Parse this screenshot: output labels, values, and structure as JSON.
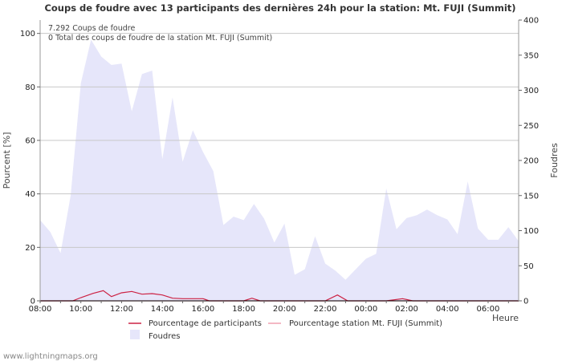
{
  "chart_data": {
    "type": "area",
    "title": "Coups de foudre avec 13 participants des dernières 24h pour la station: Mt. FUJI (Summit)",
    "xlabel": "Heure",
    "ylabel_left": "Pourcent   [%]",
    "ylabel_right": "Foudres",
    "ylim_left": [
      0,
      105
    ],
    "ylim_right": [
      0,
      400
    ],
    "yticks_left": [
      "0",
      "20",
      "40",
      "60",
      "80",
      "100"
    ],
    "yticks_left_values": [
      0,
      20,
      40,
      60,
      80,
      100
    ],
    "yticks_right": [
      "0",
      "50",
      "100",
      "150",
      "200",
      "250",
      "300",
      "350",
      "400"
    ],
    "yticks_right_values": [
      0,
      50,
      100,
      150,
      200,
      250,
      300,
      350,
      400
    ],
    "xticks": [
      "08:00",
      "10:00",
      "12:00",
      "14:00",
      "16:00",
      "18:00",
      "20:00",
      "22:00",
      "00:00",
      "02:00",
      "04:00",
      "06:00"
    ],
    "xticks_hours": [
      0,
      2,
      4,
      6,
      8,
      10,
      12,
      14,
      16,
      18,
      20,
      22
    ],
    "x_range_hours": [
      0,
      23.5
    ],
    "info_lines": [
      "7.292  Coups de foudre",
      "0 Total des coups de foudre de la station Mt. FUJI (Summit)"
    ],
    "series": [
      {
        "name": "Foudres",
        "axis": "right",
        "color": "#e6e6fa",
        "x_hours": [
          0,
          0.5,
          1,
          1.5,
          2,
          2.5,
          3,
          3.5,
          4,
          4.5,
          5,
          5.5,
          6,
          6.5,
          7,
          7.5,
          8,
          8.5,
          9,
          9.5,
          10,
          10.5,
          11,
          11.5,
          12,
          12.5,
          13,
          13.5,
          14,
          14.5,
          15,
          15.5,
          16,
          16.5,
          17,
          17.5,
          18,
          18.5,
          19,
          19.5,
          20,
          20.5,
          21,
          21.5,
          22,
          22.5,
          23,
          23.5
        ],
        "values": [
          115,
          98,
          68,
          150,
          310,
          372,
          348,
          336,
          338,
          270,
          323,
          328,
          202,
          290,
          198,
          243,
          212,
          185,
          108,
          120,
          115,
          138,
          117,
          83,
          110,
          37,
          45,
          92,
          53,
          43,
          30,
          45,
          60,
          67,
          160,
          102,
          118,
          122,
          130,
          122,
          116,
          95,
          170,
          103,
          87,
          87,
          105,
          85
        ]
      },
      {
        "name": "Pourcentage de participants",
        "axis": "left",
        "color": "#cc2244",
        "x_hours": [
          0,
          1.6,
          2,
          2.6,
          3.1,
          3.5,
          4,
          4.5,
          5,
          5.5,
          6,
          6.5,
          7,
          7.5,
          8,
          8.3,
          10,
          10.4,
          10.8,
          14,
          14.6,
          15.1,
          17,
          17.8,
          18.3,
          23.5
        ],
        "values": [
          0,
          0,
          1.2,
          2.8,
          3.8,
          1.6,
          3.0,
          3.5,
          2.5,
          2.7,
          2.2,
          1.0,
          0.8,
          0.8,
          0.8,
          0,
          0,
          1.0,
          0,
          0,
          2.2,
          0,
          0,
          0.8,
          0,
          0
        ]
      },
      {
        "name": "Pourcentage station Mt. FUJI (Summit)",
        "axis": "left",
        "color": "#f0a0b0",
        "x_hours": [
          0,
          23.5
        ],
        "values": [
          0,
          0
        ]
      }
    ]
  },
  "footer": "www.lightningmaps.org"
}
